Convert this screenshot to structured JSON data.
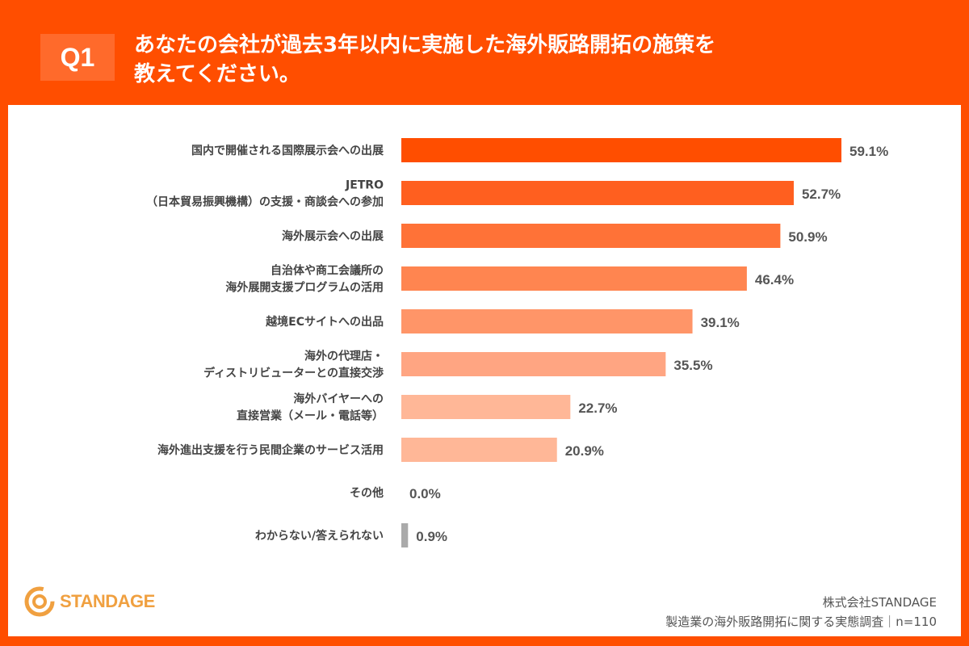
{
  "header": {
    "badge": "Q1",
    "title_line1": "あなたの会社が過去3年以内に実施した海外販路開拓の施策を",
    "title_line2": "教えてください。"
  },
  "chart_data": {
    "type": "bar",
    "orientation": "horizontal",
    "categories": [
      [
        "国内で開催される国際展示会への出展"
      ],
      [
        "JETRO",
        "（日本貿易振興機構）の支援・商談会への参加"
      ],
      [
        "海外展示会への出展"
      ],
      [
        "自治体や商工会議所の",
        "海外展開支援プログラムの活用"
      ],
      [
        "越境ECサイトへの出品"
      ],
      [
        "海外の代理店・",
        "ディストリビューターとの直接交渉"
      ],
      [
        "海外バイヤーへの",
        "直接営業（メール・電話等）"
      ],
      [
        "海外進出支援を行う民間企業のサービス活用"
      ],
      [
        "その他"
      ],
      [
        "わからない/答えられない"
      ]
    ],
    "values": [
      59.1,
      52.7,
      50.9,
      46.4,
      39.1,
      35.5,
      22.7,
      20.9,
      0.0,
      0.9
    ],
    "value_labels": [
      "59.1%",
      "52.7%",
      "50.9%",
      "46.4%",
      "39.1%",
      "35.5%",
      "22.7%",
      "20.9%",
      "0.0%",
      "0.9%"
    ],
    "unit": "%",
    "xlim": [
      0,
      65
    ],
    "grid": false,
    "colors": [
      "#ff4e00",
      "#ff5f1f",
      "#ff7237",
      "#ff8550",
      "#ff9568",
      "#ffa582",
      "#ffb797",
      "#ffb797",
      "#ffb797",
      "#aaaaaa"
    ]
  },
  "footer": {
    "logo": "STANDAGE",
    "company": "株式会社STANDAGE",
    "survey": "製造業の海外販路開拓に関する実態調査｜n=110"
  }
}
